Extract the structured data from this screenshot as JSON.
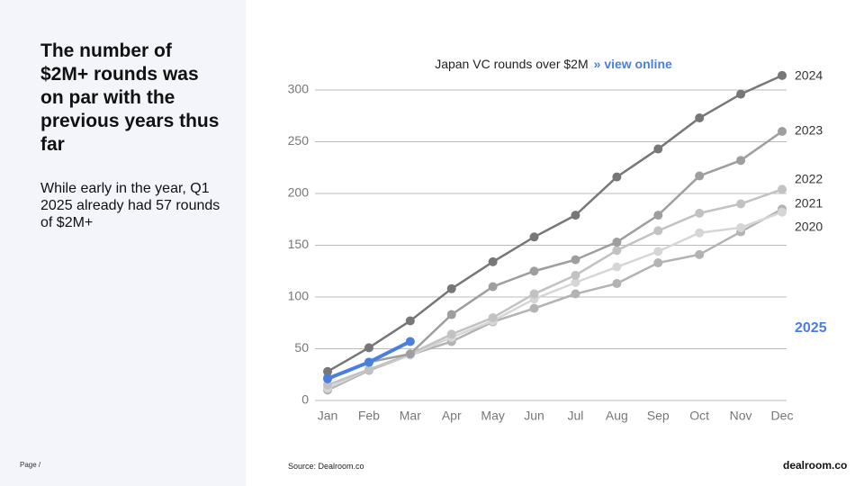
{
  "headline": "The number of $2M+ rounds was on par with the previous years thus far",
  "subtext": "While early in the year, Q1 2025 already had 57 rounds of $2M+",
  "page_label": "Page /",
  "source": "Source:  Dealroom.co",
  "brand": "dealroom.co",
  "chart_data": {
    "type": "line",
    "title": "Japan VC rounds over $2M",
    "link": "» view online",
    "categories": [
      "Jan",
      "Feb",
      "Mar",
      "Apr",
      "May",
      "Jun",
      "Jul",
      "Aug",
      "Sep",
      "Oct",
      "Nov",
      "Dec"
    ],
    "ylim": [
      0,
      300
    ],
    "yticks": [
      0,
      50,
      100,
      150,
      200,
      250,
      300
    ],
    "grid": true,
    "series": [
      {
        "name": "2020",
        "color": "#b3b3b3",
        "values": [
          10,
          29,
          44,
          57,
          76,
          89,
          103,
          113,
          133,
          141,
          163,
          185
        ]
      },
      {
        "name": "2021",
        "color": "#d6d6d6",
        "values": [
          12,
          30,
          44,
          61,
          77,
          98,
          114,
          129,
          144,
          162,
          167,
          182
        ]
      },
      {
        "name": "2022",
        "color": "#c2c2c2",
        "values": [
          15,
          30,
          45,
          64,
          80,
          103,
          121,
          145,
          164,
          181,
          190,
          204
        ]
      },
      {
        "name": "2023",
        "color": "#9e9e9e",
        "values": [
          22,
          37,
          45,
          83,
          110,
          125,
          136,
          153,
          179,
          217,
          232,
          260
        ]
      },
      {
        "name": "2024",
        "color": "#777777",
        "values": [
          28,
          51,
          77,
          108,
          134,
          158,
          179,
          216,
          243,
          273,
          296,
          314
        ]
      },
      {
        "name": "2025",
        "color": "#4a7fe0",
        "values": [
          21,
          37,
          57,
          null,
          null,
          null,
          null,
          null,
          null,
          null,
          null,
          null
        ]
      }
    ]
  }
}
